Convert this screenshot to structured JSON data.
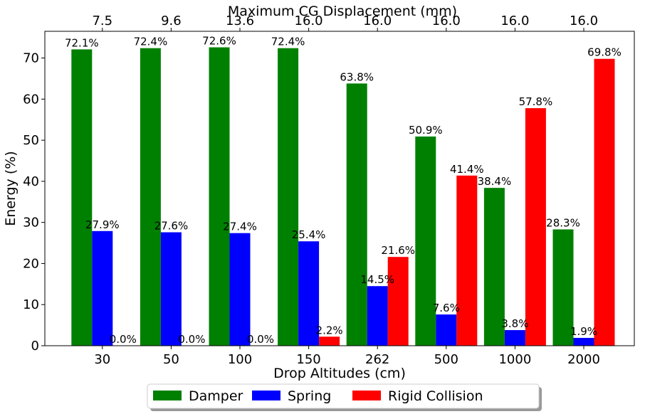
{
  "chart_data": {
    "type": "bar",
    "title": "",
    "xlabel": "Drop Altitudes (cm)",
    "ylabel": "Energy (%)",
    "top_xlabel": "Maximum CG Displacement (mm)",
    "categories": [
      "30",
      "50",
      "100",
      "150",
      "262",
      "500",
      "1000",
      "2000"
    ],
    "top_categories": [
      "7.5",
      "9.6",
      "13.6",
      "16.0",
      "16.0",
      "16.0",
      "16.0",
      "16.0"
    ],
    "ylim": [
      0,
      76.5
    ],
    "yticks": [
      0,
      10,
      20,
      30,
      40,
      50,
      60,
      70
    ],
    "grid": false,
    "legend_position": "bottom-center",
    "series": [
      {
        "name": "Damper",
        "color": "#008000",
        "values": [
          72.1,
          72.4,
          72.6,
          72.4,
          63.8,
          50.9,
          38.4,
          28.3
        ],
        "labels": [
          "72.1%",
          "72.4%",
          "72.6%",
          "72.4%",
          "63.8%",
          "50.9%",
          "38.4%",
          "28.3%"
        ]
      },
      {
        "name": "Spring",
        "color": "#0000ff",
        "values": [
          27.9,
          27.6,
          27.4,
          25.4,
          14.5,
          7.6,
          3.8,
          1.9
        ],
        "labels": [
          "27.9%",
          "27.6%",
          "27.4%",
          "25.4%",
          "14.5%",
          "7.6%",
          "3.8%",
          "1.9%"
        ]
      },
      {
        "name": "Rigid Collision",
        "color": "#ff0000",
        "values": [
          0.0,
          0.0,
          0.0,
          2.2,
          21.6,
          41.4,
          57.8,
          69.8
        ],
        "labels": [
          "0.0%",
          "0.0%",
          "0.0%",
          "2.2%",
          "21.6%",
          "41.4%",
          "57.8%",
          "69.8%"
        ]
      }
    ]
  }
}
